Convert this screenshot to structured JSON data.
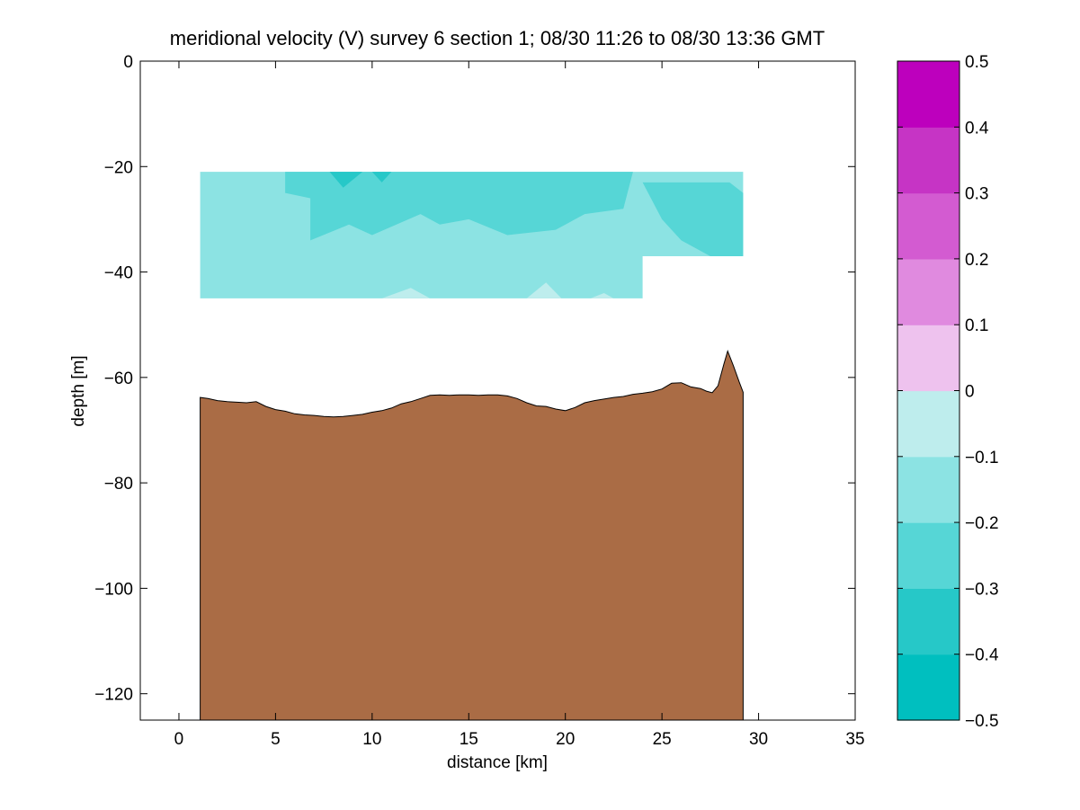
{
  "chart_data": {
    "type": "contour",
    "title": "meridional velocity (V) survey 6 section 1; 08/30 11:26 to 08/30 13:36 GMT",
    "xlabel": "distance [km]",
    "ylabel": "depth [m]",
    "xlim": [
      -2,
      35
    ],
    "ylim": [
      -125,
      0
    ],
    "xticks": [
      0,
      5,
      10,
      15,
      20,
      25,
      30,
      35
    ],
    "yticks": [
      0,
      -20,
      -40,
      -60,
      -80,
      -100,
      -120
    ],
    "grid": false,
    "colorbar": {
      "range": [
        -0.5,
        0.5
      ],
      "levels": [
        -0.5,
        -0.4,
        -0.3,
        -0.2,
        -0.1,
        0,
        0.1,
        0.2,
        0.3,
        0.4,
        0.5
      ],
      "tick_labels": [
        "0.5",
        "0.4",
        "0.3",
        "0.2",
        "0.1",
        "0",
        "−0.1",
        "−0.2",
        "−0.3",
        "−0.4",
        "−0.5"
      ],
      "colors": [
        "#00BFBF",
        "#26C8C8",
        "#56D6D6",
        "#8CE3E3",
        "#BEEDED",
        "#EEC2EE",
        "#E08ADF",
        "#D35BD1",
        "#C634C5",
        "#BD00BD"
      ]
    },
    "velocity_field": {
      "x_range": [
        1.1,
        29.2
      ],
      "depth_range": [
        -21,
        -45
      ],
      "cutout_bottom_right": {
        "x_from": 24.0,
        "depth_below": -37
      },
      "dominant_band": [
        -0.2,
        -0.1
      ],
      "regions": [
        {
          "band": [
            -0.3,
            -0.2
          ],
          "polygon": [
            [
              5.5,
              -21
            ],
            [
              23.5,
              -21
            ],
            [
              23.0,
              -28
            ],
            [
              21.0,
              -29
            ],
            [
              19.5,
              -32
            ],
            [
              17.0,
              -33
            ],
            [
              15.0,
              -30
            ],
            [
              13.5,
              -31
            ],
            [
              12.5,
              -29
            ],
            [
              10.0,
              -33
            ],
            [
              8.8,
              -31
            ],
            [
              6.8,
              -34
            ],
            [
              6.8,
              -26
            ],
            [
              5.5,
              -25
            ]
          ]
        },
        {
          "band": [
            -0.3,
            -0.2
          ],
          "polygon": [
            [
              24.0,
              -23
            ],
            [
              28.5,
              -23
            ],
            [
              29.2,
              -25
            ],
            [
              29.2,
              -37
            ],
            [
              27.5,
              -37
            ],
            [
              26.0,
              -34
            ],
            [
              25.0,
              -30
            ]
          ]
        },
        {
          "band": [
            -0.4,
            -0.3
          ],
          "polygon": [
            [
              7.8,
              -21
            ],
            [
              9.5,
              -21
            ],
            [
              8.5,
              -24
            ]
          ]
        },
        {
          "band": [
            -0.4,
            -0.3
          ],
          "polygon": [
            [
              10.0,
              -21
            ],
            [
              11.0,
              -21
            ],
            [
              10.5,
              -23
            ]
          ]
        },
        {
          "band": [
            -0.1,
            0.0
          ],
          "polygon": [
            [
              10.5,
              -45
            ],
            [
              12.0,
              -43
            ],
            [
              13.0,
              -45
            ]
          ]
        },
        {
          "band": [
            -0.1,
            0.0
          ],
          "polygon": [
            [
              18.0,
              -45
            ],
            [
              19.0,
              -42
            ],
            [
              19.8,
              -45
            ]
          ]
        },
        {
          "band": [
            -0.1,
            0.0
          ],
          "polygon": [
            [
              21.3,
              -45
            ],
            [
              22.0,
              -44
            ],
            [
              22.5,
              -45
            ]
          ]
        }
      ]
    },
    "bathymetry": {
      "color": "#AA6C45",
      "bottom_depth": -125,
      "x": [
        1.1,
        1.5,
        2.0,
        2.5,
        3.0,
        3.5,
        4.0,
        4.5,
        5.0,
        5.5,
        6.0,
        6.5,
        7.0,
        7.5,
        8.0,
        8.5,
        9.0,
        9.5,
        10.0,
        10.5,
        11.0,
        11.5,
        12.0,
        12.5,
        13.0,
        13.5,
        14.0,
        14.5,
        15.0,
        15.5,
        16.0,
        16.5,
        17.0,
        17.5,
        18.0,
        18.5,
        19.0,
        19.5,
        20.0,
        20.5,
        21.0,
        21.5,
        22.0,
        22.5,
        23.0,
        23.5,
        24.0,
        24.5,
        25.0,
        25.5,
        26.0,
        26.5,
        27.0,
        27.3,
        27.6,
        27.9,
        28.2,
        28.4,
        28.7,
        29.0,
        29.2
      ],
      "depth": [
        -63.8,
        -64.0,
        -64.4,
        -64.6,
        -64.7,
        -64.8,
        -64.6,
        -65.5,
        -66.1,
        -66.4,
        -66.9,
        -67.1,
        -67.2,
        -67.4,
        -67.5,
        -67.4,
        -67.2,
        -67.0,
        -66.6,
        -66.3,
        -65.8,
        -65.0,
        -64.6,
        -64.0,
        -63.4,
        -63.3,
        -63.4,
        -63.3,
        -63.3,
        -63.4,
        -63.3,
        -63.3,
        -63.5,
        -64.0,
        -64.8,
        -65.4,
        -65.5,
        -66.0,
        -66.3,
        -65.7,
        -64.8,
        -64.4,
        -64.1,
        -63.8,
        -63.6,
        -63.2,
        -63.0,
        -62.7,
        -62.2,
        -61.1,
        -61.0,
        -61.8,
        -62.1,
        -62.6,
        -62.9,
        -61.6,
        -57.5,
        -55.0,
        -57.8,
        -60.9,
        -62.8
      ]
    }
  }
}
